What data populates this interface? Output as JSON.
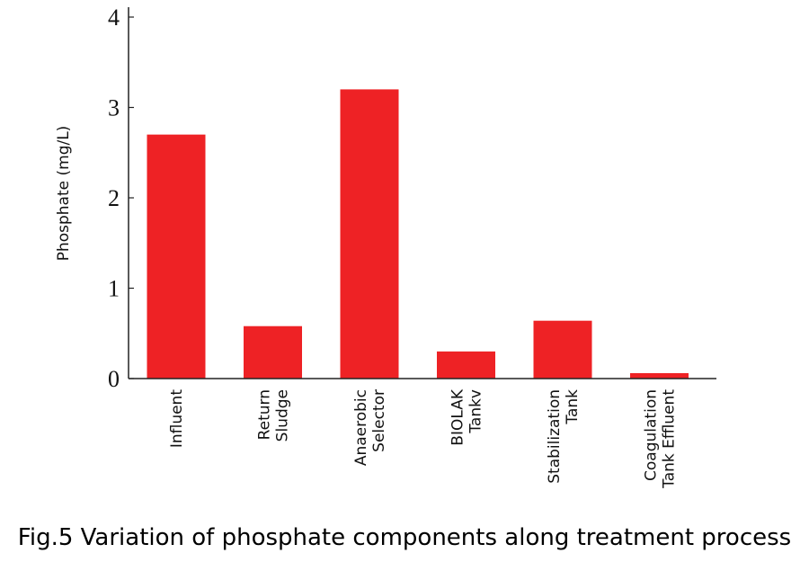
{
  "caption": "Fig.5 Variation of phosphate components along treatment process",
  "chart_data": {
    "type": "bar",
    "title": "",
    "xlabel": "",
    "ylabel": "Phosphate (mg/L)",
    "ylim": [
      0,
      4
    ],
    "yticks": [
      0,
      1,
      2,
      3,
      4
    ],
    "categories": [
      [
        "Influent"
      ],
      [
        "Return",
        "Sludge"
      ],
      [
        "Anaerobic",
        "Selector"
      ],
      [
        "BIOLAK",
        "Tankv"
      ],
      [
        "Stabilization",
        "Tank"
      ],
      [
        "Coagulation",
        "Tank Effluent"
      ]
    ],
    "values": [
      2.7,
      0.58,
      3.2,
      0.3,
      0.64,
      0.06
    ],
    "bar_color": "#ee2225",
    "grid": false,
    "legend": "none"
  }
}
